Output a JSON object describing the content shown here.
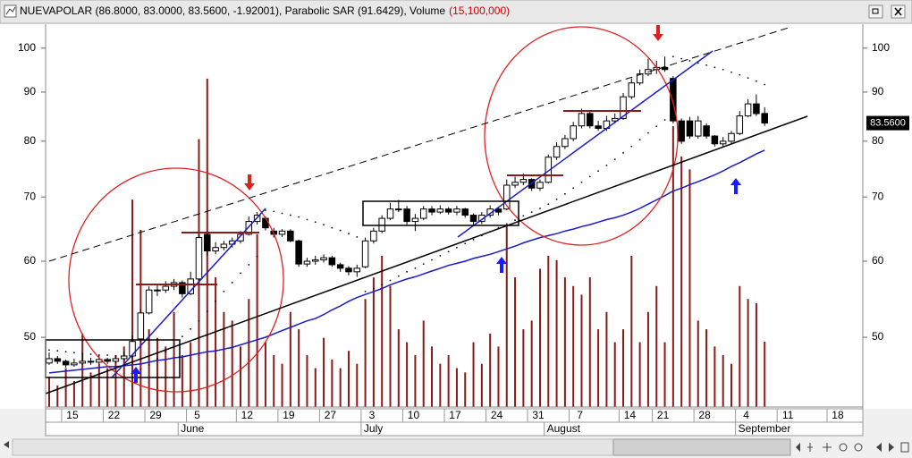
{
  "header": {
    "title": "NUEVAPOLAR (86.8000, 83.0000, 83.5600, -1.92001), Parabolic SAR (91.6429), Volume",
    "volume_label": "(15,100,000)",
    "price_label": "83.5600"
  },
  "chart_data": {
    "type": "candlestick",
    "log_scale": true,
    "up_color": "#ffffff",
    "down_color": "#000000",
    "ohlc": [
      [
        47.0,
        48.2,
        46.8,
        47.5
      ],
      [
        47.5,
        47.8,
        46.9,
        47.2
      ],
      [
        47.2,
        47.4,
        46.5,
        46.8
      ],
      [
        46.8,
        47.5,
        46.6,
        47.0
      ],
      [
        47.0,
        48.0,
        46.8,
        47.2
      ],
      [
        47.2,
        47.6,
        46.8,
        47.1
      ],
      [
        47.1,
        47.9,
        46.9,
        47.4
      ],
      [
        47.4,
        47.6,
        46.9,
        47.2
      ],
      [
        47.2,
        47.9,
        47.0,
        47.5
      ],
      [
        47.5,
        48.3,
        47.3,
        47.8
      ],
      [
        47.8,
        50.2,
        47.6,
        49.5
      ],
      [
        49.8,
        53.5,
        49.5,
        53.0
      ],
      [
        53.0,
        56.5,
        52.8,
        56.0
      ],
      [
        56.0,
        56.8,
        55.2,
        56.0
      ],
      [
        56.0,
        57.2,
        55.6,
        56.5
      ],
      [
        56.5,
        57.5,
        56.0,
        57.0
      ],
      [
        57.0,
        57.3,
        55.0,
        55.5
      ],
      [
        55.5,
        58.5,
        55.3,
        57.5
      ],
      [
        57.5,
        64.0,
        57.3,
        63.5
      ],
      [
        64.0,
        64.5,
        60.8,
        61.5
      ],
      [
        61.5,
        62.8,
        61.0,
        62.0
      ],
      [
        62.0,
        63.0,
        61.6,
        62.5
      ],
      [
        62.5,
        63.5,
        62.0,
        63.0
      ],
      [
        63.0,
        64.5,
        62.6,
        64.0
      ],
      [
        64.0,
        66.8,
        63.8,
        66.0
      ],
      [
        66.0,
        67.5,
        65.5,
        67.0
      ],
      [
        66.5,
        66.8,
        64.6,
        65.0
      ],
      [
        64.5,
        65.0,
        63.5,
        64.0
      ],
      [
        64.0,
        64.8,
        63.6,
        64.5
      ],
      [
        64.5,
        64.8,
        62.8,
        63.0
      ],
      [
        63.0,
        63.2,
        59.2,
        59.6
      ],
      [
        59.6,
        60.5,
        59.2,
        60.0
      ],
      [
        60.0,
        60.8,
        59.5,
        60.2
      ],
      [
        60.2,
        61.0,
        59.8,
        60.5
      ],
      [
        60.5,
        60.8,
        59.2,
        59.5
      ],
      [
        59.5,
        59.8,
        58.5,
        59.0
      ],
      [
        59.0,
        59.3,
        58.0,
        58.5
      ],
      [
        58.5,
        59.5,
        57.8,
        59.0
      ],
      [
        59.2,
        63.5,
        59.0,
        63.0
      ],
      [
        63.0,
        65.0,
        62.6,
        64.5
      ],
      [
        64.5,
        67.0,
        64.2,
        66.5
      ],
      [
        66.5,
        69.0,
        66.2,
        68.0
      ],
      [
        68.0,
        69.5,
        67.5,
        68.0
      ],
      [
        68.0,
        68.5,
        65.5,
        66.0
      ],
      [
        66.0,
        67.2,
        64.5,
        66.5
      ],
      [
        66.5,
        68.5,
        66.2,
        68.0
      ],
      [
        68.0,
        68.5,
        67.0,
        67.5
      ],
      [
        67.5,
        68.6,
        67.2,
        68.0
      ],
      [
        68.0,
        68.3,
        67.1,
        67.5
      ],
      [
        67.5,
        68.5,
        67.0,
        68.0
      ],
      [
        68.0,
        68.2,
        66.6,
        67.0
      ],
      [
        67.0,
        67.3,
        65.5,
        66.0
      ],
      [
        66.0,
        67.5,
        65.6,
        67.0
      ],
      [
        67.0,
        68.6,
        66.6,
        68.0
      ],
      [
        68.0,
        68.4,
        67.0,
        67.5
      ],
      [
        68.0,
        73.0,
        67.8,
        72.0
      ],
      [
        72.0,
        73.5,
        71.5,
        72.5
      ],
      [
        72.5,
        74.0,
        72.0,
        73.0
      ],
      [
        73.0,
        73.2,
        71.0,
        71.5
      ],
      [
        71.5,
        73.0,
        71.0,
        72.5
      ],
      [
        72.5,
        77.5,
        72.3,
        77.0
      ],
      [
        77.0,
        79.8,
        76.5,
        79.0
      ],
      [
        79.0,
        81.2,
        78.5,
        80.5
      ],
      [
        80.5,
        83.8,
        80.0,
        83.0
      ],
      [
        83.0,
        86.5,
        82.5,
        85.5
      ],
      [
        85.5,
        86.0,
        82.5,
        83.0
      ],
      [
        83.0,
        84.0,
        82.0,
        82.5
      ],
      [
        82.5,
        85.0,
        82.0,
        84.0
      ],
      [
        84.0,
        85.5,
        83.5,
        84.5
      ],
      [
        84.5,
        89.8,
        84.2,
        89.0
      ],
      [
        89.0,
        93.0,
        88.5,
        92.0
      ],
      [
        92.0,
        95.0,
        91.5,
        94.0
      ],
      [
        94.0,
        97.5,
        93.5,
        95.0
      ],
      [
        95.0,
        97.0,
        94.0,
        95.5
      ],
      [
        95.5,
        98.0,
        94.5,
        95.0
      ],
      [
        93.0,
        93.5,
        83.5,
        84.0
      ],
      [
        84.0,
        84.5,
        79.5,
        80.0
      ],
      [
        84.0,
        84.8,
        80.5,
        81.0
      ],
      [
        81.0,
        85.0,
        80.5,
        84.0
      ],
      [
        83.0,
        83.5,
        80.5,
        81.0
      ],
      [
        81.0,
        81.2,
        79.0,
        79.5
      ],
      [
        79.5,
        80.8,
        79.0,
        80.0
      ],
      [
        80.0,
        82.0,
        79.6,
        81.5
      ],
      [
        81.5,
        86.0,
        81.2,
        85.0
      ],
      [
        85.0,
        88.5,
        84.8,
        87.5
      ],
      [
        87.5,
        89.5,
        85.0,
        85.48
      ],
      [
        85.5,
        86.8,
        83.0,
        83.56
      ]
    ],
    "volume": {
      "color": "#8b1a1a",
      "values": [
        7000000,
        5000000,
        9000000,
        6000000,
        17000000,
        8000000,
        10000000,
        9000000,
        12000000,
        14000000,
        48000000,
        41000000,
        18000000,
        16000000,
        14000000,
        22000000,
        12000000,
        15000000,
        62000000,
        76000000,
        30000000,
        22000000,
        20000000,
        14000000,
        25000000,
        40000000,
        15000000,
        12000000,
        10000000,
        22000000,
        18000000,
        12000000,
        9000000,
        16000000,
        11000000,
        9000000,
        13000000,
        10000000,
        25000000,
        30000000,
        35000000,
        28000000,
        18000000,
        15000000,
        12000000,
        20000000,
        14000000,
        10000000,
        12000000,
        9000000,
        8000000,
        15000000,
        10000000,
        17000000,
        14000000,
        42000000,
        30000000,
        18000000,
        20000000,
        32000000,
        35000000,
        34000000,
        30000000,
        28000000,
        26000000,
        30000000,
        18000000,
        22000000,
        15000000,
        18000000,
        35000000,
        15000000,
        22000000,
        28000000,
        15000000,
        65000000,
        58000000,
        55000000,
        20000000,
        18000000,
        14000000,
        12000000,
        10000000,
        28000000,
        25000000,
        24000000,
        15100000
      ]
    },
    "sar": {
      "color": "#000000",
      "values": [
        48.5,
        48.4,
        48.3,
        48.2,
        48.1,
        48.0,
        47.9,
        47.9,
        47.8,
        47.8,
        46.0,
        46.3,
        46.8,
        47.5,
        48.3,
        49.2,
        50.1,
        51.0,
        52.0,
        53.2,
        54.5,
        55.8,
        57.0,
        58.3,
        59.5,
        60.7,
        67.8,
        67.6,
        67.3,
        67.0,
        66.7,
        66.3,
        65.9,
        65.5,
        65.0,
        64.6,
        64.1,
        63.6,
        55.8,
        56.2,
        56.7,
        57.3,
        57.9,
        58.5,
        59.0,
        59.6,
        60.2,
        60.8,
        61.4,
        62.0,
        62.6,
        63.2,
        63.8,
        64.4,
        65.0,
        65.6,
        66.2,
        66.9,
        67.5,
        68.1,
        68.8,
        69.6,
        70.5,
        71.5,
        72.5,
        73.5,
        74.5,
        75.5,
        76.6,
        77.8,
        79.0,
        80.3,
        81.6,
        82.9,
        84.2,
        98.0,
        97.5,
        97.0,
        96.5,
        96.0,
        95.5,
        95.0,
        94.4,
        93.8,
        93.1,
        92.4,
        91.6429
      ]
    },
    "moving_average": {
      "color": "#1a1acc",
      "values": [
        45.9,
        46.0,
        46.1,
        46.2,
        46.3,
        46.4,
        46.5,
        46.6,
        46.6,
        46.7,
        46.8,
        46.9,
        47.1,
        47.3,
        47.4,
        47.6,
        47.7,
        47.9,
        48.1,
        48.3,
        48.4,
        48.6,
        48.8,
        49.1,
        49.4,
        49.7,
        50.0,
        50.4,
        50.8,
        51.2,
        51.6,
        52.0,
        52.3,
        52.8,
        53.4,
        53.9,
        54.5,
        55.0,
        55.4,
        55.8,
        56.2,
        56.7,
        57.1,
        57.5,
        57.8,
        58.2,
        58.6,
        59.0,
        59.4,
        59.7,
        60.0,
        60.4,
        60.7,
        61.0,
        61.4,
        61.8,
        62.2,
        62.7,
        63.1,
        63.5,
        63.8,
        64.1,
        64.5,
        64.8,
        65.2,
        65.5,
        65.9,
        66.3,
        66.6,
        67.0,
        67.5,
        68.1,
        68.8,
        69.5,
        70.2,
        71.0,
        71.5,
        72.1,
        72.6,
        73.2,
        73.8,
        74.5,
        75.3,
        76.0,
        76.8,
        77.6,
        78.3
      ]
    },
    "ylim": [
      42.3,
      105.7
    ],
    "yticks": [
      50,
      60,
      70,
      80,
      90,
      100
    ],
    "y2lim": [
      0,
      88400000
    ],
    "xlim": [
      -0.43,
      97.8
    ],
    "xticks": [
      {
        "value": 1.5,
        "label": "15"
      },
      {
        "value": 6.5,
        "label": "22"
      },
      {
        "value": 11.5,
        "label": "29"
      },
      {
        "value": 16.5,
        "label": "5"
      },
      {
        "value": 22.5,
        "label": "12"
      },
      {
        "value": 27.5,
        "label": "19"
      },
      {
        "value": 32.5,
        "label": "27"
      },
      {
        "value": 37.5,
        "label": "3"
      },
      {
        "value": 42.5,
        "label": "10"
      },
      {
        "value": 47.5,
        "label": "17"
      },
      {
        "value": 52.5,
        "label": "24"
      },
      {
        "value": 57.5,
        "label": "31"
      },
      {
        "value": 62.5,
        "label": "7"
      },
      {
        "value": 68.5,
        "label": "14"
      },
      {
        "value": 72.5,
        "label": "21"
      },
      {
        "value": 77.5,
        "label": "28"
      },
      {
        "value": 82.5,
        "label": "4"
      },
      {
        "value": 87.5,
        "label": "11"
      },
      {
        "value": 93.5,
        "label": "18"
      }
    ],
    "month_ticks": [
      {
        "value": 15.5,
        "label": "June"
      },
      {
        "value": 37.5,
        "label": "July"
      },
      {
        "value": 59.5,
        "label": "August"
      },
      {
        "value": 82.5,
        "label": "September"
      }
    ]
  }
}
